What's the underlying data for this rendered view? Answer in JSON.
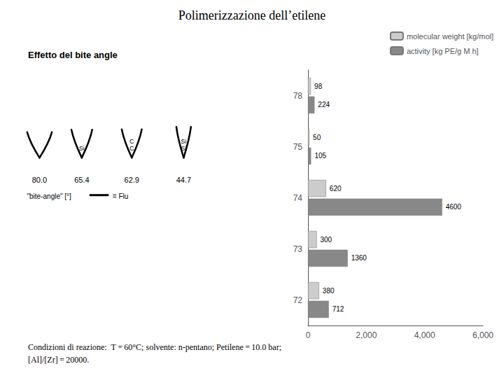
{
  "chart_data": {
    "type": "bar",
    "orientation": "horizontal",
    "title": "Polimerizzazione dell’etilene",
    "categories": [
      "78",
      "75",
      "74",
      "73",
      "72"
    ],
    "series": [
      {
        "name": "molecular weight [kg/mol]",
        "color": "#cccccc",
        "values": [
          98,
          50,
          620,
          300,
          380
        ]
      },
      {
        "name": "activity [kg PE/g M h]",
        "color": "#888888",
        "values": [
          224,
          105,
          4600,
          1360,
          712
        ]
      }
    ],
    "xlim": [
      0,
      6000
    ],
    "xticks": [
      0,
      2000,
      4000,
      6000
    ],
    "data_labels": true,
    "legend": "upper right",
    "grid": false,
    "annotations": [
      "Effetto del bite angle",
      "80.0",
      "65.4",
      "62.9",
      "44.7",
      "Si",
      "C\nC",
      "Si\nSi",
      "\"bite-angle\" [°]",
      "= Flu",
      "Condizioni di reazione:  T = 60°C; solvente: n-pentano; Petilene = 10.0 bar;",
      "[Al]/[Zr] = 20000."
    ]
  }
}
